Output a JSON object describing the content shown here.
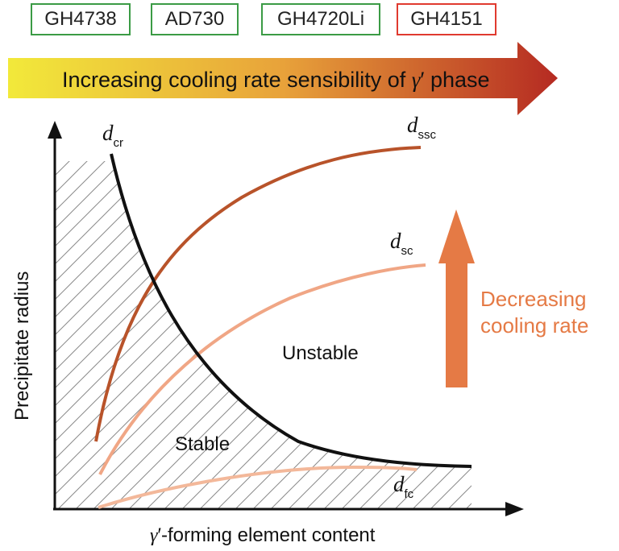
{
  "alloys": [
    {
      "label": "GH4738",
      "border_color": "#3b9b45"
    },
    {
      "label": "AD730",
      "border_color": "#3b9b45"
    },
    {
      "label": "GH4720Li",
      "border_color": "#3b9b45"
    },
    {
      "label": "GH4151",
      "border_color": "#e03a2f"
    }
  ],
  "banner": {
    "text_prefix": "Increasing cooling rate sensibility of ",
    "gamma": "γ",
    "prime": "′",
    "text_suffix": " phase",
    "gradient_colors": [
      "#f2e93a",
      "#e8a23a",
      "#b52a22"
    ]
  },
  "axes": {
    "xlabel_gamma": "γ",
    "xlabel_prime": "′",
    "xlabel_rest": "-forming element content",
    "ylabel": "Precipitate radius"
  },
  "curves": {
    "d_cr": {
      "symbol": "d",
      "subscript": "cr",
      "color": "#111111"
    },
    "d_ssc": {
      "symbol": "d",
      "subscript": "ssc",
      "color": "#b8532a"
    },
    "d_sc": {
      "symbol": "d",
      "subscript": "sc",
      "color": "#f0a685"
    },
    "d_fc": {
      "symbol": "d",
      "subscript": "fc",
      "color": "#f3b89a"
    }
  },
  "regions": {
    "stable": "Stable",
    "unstable": "Unstable"
  },
  "cooling_arrow": {
    "line1": "Decreasing",
    "line2": "cooling rate",
    "color": "#e57a45"
  }
}
